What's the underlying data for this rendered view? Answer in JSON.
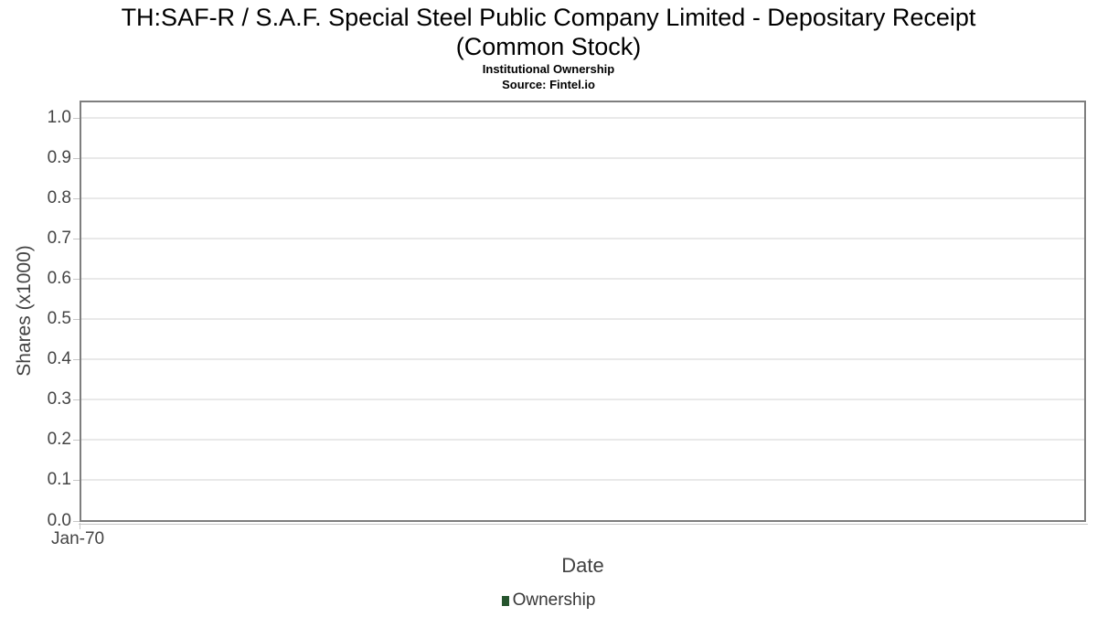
{
  "chart_data": {
    "type": "line",
    "title": "TH:SAF-R / S.A.F. Special Steel Public Company Limited - Depositary Receipt (Common Stock)",
    "title_lines": [
      "TH:SAF-R / S.A.F. Special Steel Public Company Limited - Depositary Receipt",
      "(Common Stock)"
    ],
    "subtitle": "Institutional Ownership",
    "source": "Source: Fintel.io",
    "xlabel": "Date",
    "ylabel": "Shares (x1000)",
    "x_ticks": [
      "Jan-70"
    ],
    "y_ticks": [
      "0.0",
      "0.1",
      "0.2",
      "0.3",
      "0.4",
      "0.5",
      "0.6",
      "0.7",
      "0.8",
      "0.9",
      "1.0"
    ],
    "ylim": [
      0.0,
      1.04
    ],
    "grid": true,
    "legend_position": "bottom",
    "series": [
      {
        "name": "Ownership",
        "color": "#26552e",
        "x": [],
        "values": []
      }
    ]
  },
  "colors": {
    "background": "#ffffff",
    "title_text": "#000000",
    "axis_text": "#444444",
    "axis_title_text": "#424242",
    "legend_text": "#383838",
    "gridline": "#e9e9e9",
    "plot_border": "#7e7e7e",
    "tick_mark": "#c6c6c6",
    "series_green": "#26552e"
  }
}
